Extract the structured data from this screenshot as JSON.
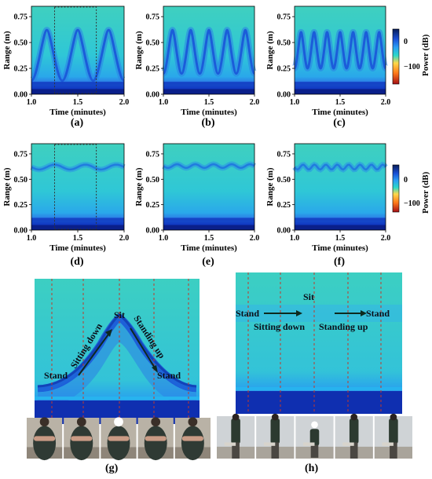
{
  "figure": {
    "colorbar": {
      "label": "Power (dB)",
      "ticks": [
        "0",
        "−100"
      ],
      "colors": [
        "#081d58",
        "#1a4fd6",
        "#2a9df4",
        "#2ad8c9",
        "#ffd84a",
        "#ff7a1a",
        "#a50f15"
      ]
    },
    "photo_strip_g": {
      "frames": 5
    },
    "photo_strip_h": {
      "frames": 5
    }
  },
  "chart_data": [
    {
      "panel": "(a)",
      "type": "heatmap",
      "xlabel": "Time (minutes)",
      "ylabel": "Range (m)",
      "xlim": [
        1.0,
        2.0
      ],
      "ylim": [
        0.0,
        0.85
      ],
      "xticks": [
        "1.0",
        "1.5",
        "2.0"
      ],
      "yticks": [
        "0.00",
        "0.25",
        "0.50",
        "0.75"
      ],
      "pattern": "arch",
      "cycles": 3,
      "range_low_m": 0.13,
      "range_high_m": 0.62,
      "highlight_box_minutes": [
        1.25,
        1.7
      ]
    },
    {
      "panel": "(b)",
      "type": "heatmap",
      "xlabel": "Time (minutes)",
      "ylabel": "Range (m)",
      "xlim": [
        1.0,
        2.0
      ],
      "ylim": [
        0.0,
        0.85
      ],
      "xticks": [
        "1.0",
        "1.5",
        "2.0"
      ],
      "yticks": [
        "0.00",
        "0.25",
        "0.50",
        "0.75"
      ],
      "pattern": "arch",
      "cycles": 5,
      "range_low_m": 0.2,
      "range_high_m": 0.62
    },
    {
      "panel": "(c)",
      "type": "heatmap",
      "xlabel": "Time (minutes)",
      "ylabel": "Range (m)",
      "xlim": [
        1.0,
        2.0
      ],
      "ylim": [
        0.0,
        0.85
      ],
      "xticks": [
        "1.0",
        "1.5",
        "2.0"
      ],
      "yticks": [
        "0.00",
        "0.25",
        "0.50",
        "0.75"
      ],
      "pattern": "arch",
      "cycles": 7,
      "range_low_m": 0.25,
      "range_high_m": 0.6
    },
    {
      "panel": "(d)",
      "type": "heatmap",
      "xlabel": "Time (minutes)",
      "ylabel": "Range (m)",
      "xlim": [
        1.0,
        2.0
      ],
      "ylim": [
        0.0,
        0.85
      ],
      "xticks": [
        "1.0",
        "1.5",
        "2.0"
      ],
      "yticks": [
        "0.00",
        "0.25",
        "0.50",
        "0.75"
      ],
      "pattern": "band",
      "cycles": 3,
      "range_low_m": 0.58,
      "range_high_m": 0.66,
      "highlight_box_minutes": [
        1.25,
        1.7
      ]
    },
    {
      "panel": "(e)",
      "type": "heatmap",
      "xlabel": "Time (minutes)",
      "ylabel": "Range (m)",
      "xlim": [
        1.0,
        2.0
      ],
      "ylim": [
        0.0,
        0.85
      ],
      "xticks": [
        "1.0",
        "1.5",
        "2.0"
      ],
      "yticks": [
        "0.00",
        "0.25",
        "0.50",
        "0.75"
      ],
      "pattern": "band",
      "cycles": 5,
      "range_low_m": 0.6,
      "range_high_m": 0.66
    },
    {
      "panel": "(f)",
      "type": "heatmap",
      "xlabel": "Time (minutes)",
      "ylabel": "Range (m)",
      "xlim": [
        1.0,
        2.0
      ],
      "ylim": [
        0.0,
        0.85
      ],
      "xticks": [
        "1.0",
        "1.5",
        "2.0"
      ],
      "yticks": [
        "0.00",
        "0.25",
        "0.50",
        "0.75"
      ],
      "pattern": "band",
      "cycles": 8,
      "range_low_m": 0.58,
      "range_high_m": 0.66
    },
    {
      "panel": "(g)",
      "type": "heatmap",
      "pattern": "single-arch",
      "annotations": [
        "Stand",
        "Sitting down",
        "Sit",
        "Standing up",
        "Stand"
      ]
    },
    {
      "panel": "(h)",
      "type": "heatmap",
      "pattern": "flat-band",
      "annotations": [
        "Stand",
        "Sitting down",
        "Sit",
        "Standing up",
        "Stand"
      ]
    }
  ]
}
